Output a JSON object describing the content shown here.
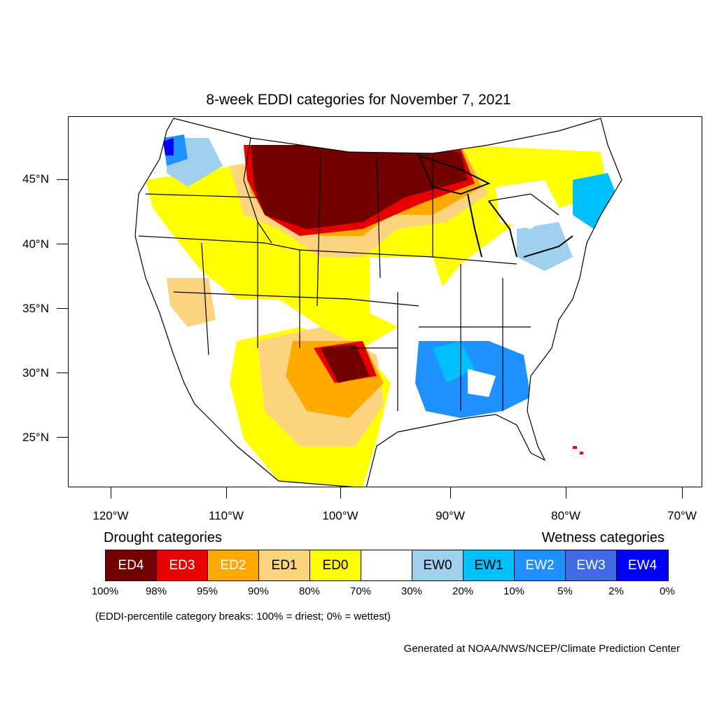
{
  "title": "8-week EDDI categories for November 7, 2021",
  "map": {
    "projection": "lambert-conformal-style",
    "lat_labels": [
      "45°N",
      "40°N",
      "35°N",
      "30°N",
      "25°N"
    ],
    "lon_labels": [
      "120°W",
      "110°W",
      "100°W",
      "90°W",
      "80°W",
      "70°W"
    ]
  },
  "legend": {
    "drought_heading": "Drought categories",
    "wetness_heading": "Wetness categories",
    "categories": [
      {
        "label": "ED4",
        "color": "#730000",
        "text_color": "#ffffff"
      },
      {
        "label": "ED3",
        "color": "#e60000",
        "text_color": "#ffffff"
      },
      {
        "label": "ED2",
        "color": "#ffaa00",
        "text_color": "#ffffff"
      },
      {
        "label": "ED1",
        "color": "#fcd37f",
        "text_color": "#000000"
      },
      {
        "label": "ED0",
        "color": "#ffff00",
        "text_color": "#000000"
      },
      {
        "label": "",
        "color": "#ffffff",
        "text_color": "#000000"
      },
      {
        "label": "EW0",
        "color": "#9fd0ee",
        "text_color": "#000000"
      },
      {
        "label": "EW1",
        "color": "#00bfff",
        "text_color": "#000000"
      },
      {
        "label": "EW2",
        "color": "#1e90ff",
        "text_color": "#ffffff"
      },
      {
        "label": "EW3",
        "color": "#4169e1",
        "text_color": "#ffffff"
      },
      {
        "label": "EW4",
        "color": "#0000ff",
        "text_color": "#ffffff"
      }
    ],
    "breaks": [
      "100%",
      "98%",
      "95%",
      "90%",
      "80%",
      "70%",
      "30%",
      "20%",
      "10%",
      "5%",
      "2%",
      "0%"
    ]
  },
  "note": "(EDDI-percentile category breaks: 100% = driest; 0% = wettest)",
  "credit": "Generated at NOAA/NWS/NCEP/Climate Prediction Center"
}
